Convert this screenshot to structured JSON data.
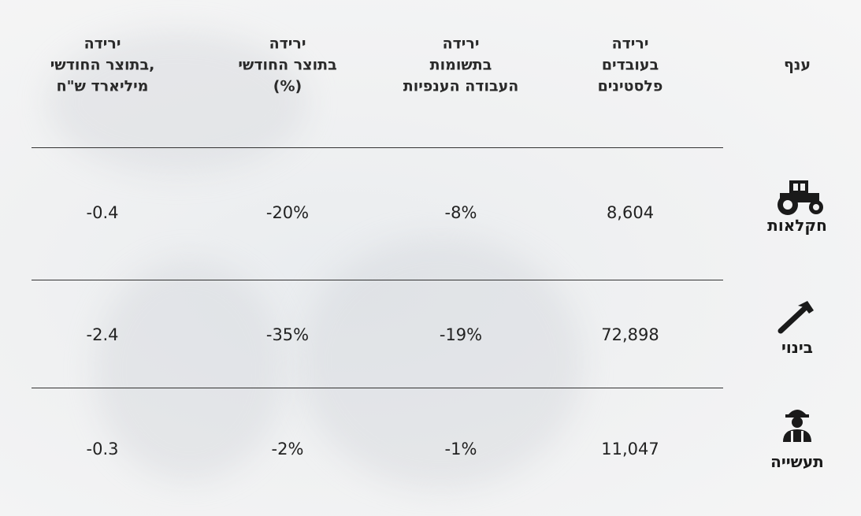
{
  "table": {
    "header": [
      [
        "ענף"
      ],
      [
        "ירידה",
        "בעובדים",
        "פלסטינים"
      ],
      [
        "ירידה",
        "בתשומות",
        "העבודה הענפיות"
      ],
      [
        "ירידה",
        "בתוצר החודשי",
        "(%)"
      ],
      [
        "ירידה",
        "בתוצר החודשי,",
        "מיליארד ש\"ח"
      ]
    ],
    "rows": [
      [
        "חקלאות",
        "8,604",
        "-8%",
        "-20%",
        "-0.4"
      ],
      [
        "בינוי",
        "72,898",
        "-19%",
        "-35%",
        "-2.4"
      ],
      [
        "תעשייה",
        "11,047",
        "-1%",
        "-2%",
        "-0.3"
      ]
    ]
  }
}
